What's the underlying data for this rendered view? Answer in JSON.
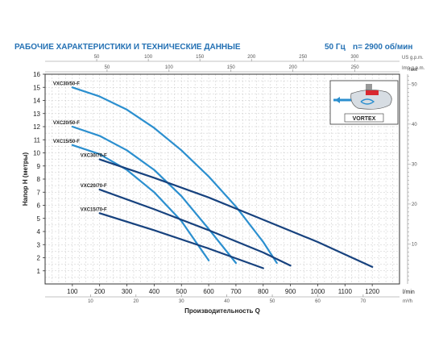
{
  "header": {
    "title": "РАБОЧИЕ ХАРАКТЕРИСТИКИ И ТЕХНИЧЕСКИЕ ДАННЫЕ",
    "frequency": "50 Гц",
    "speed": "n= 2900 об/мин"
  },
  "inset": {
    "label": "VORTEX"
  },
  "colors": {
    "light": "#2b8fcf",
    "dark": "#17427e",
    "grid": "#c9c9c9",
    "axis": "#333333"
  },
  "chart_data": {
    "type": "line",
    "xlabel": "Производительность Q",
    "ylabel": "Напор H (метры)",
    "x_unit": "l/min",
    "xlim": [
      0,
      1300
    ],
    "ylim": [
      0,
      16
    ],
    "xticks": [
      100,
      200,
      300,
      400,
      500,
      600,
      700,
      800,
      900,
      1000,
      1100,
      1200
    ],
    "yticks": [
      1,
      2,
      3,
      4,
      5,
      6,
      7,
      8,
      9,
      10,
      11,
      12,
      13,
      14,
      15,
      16
    ],
    "top_axes": [
      {
        "unit": "US g.p.m.",
        "per_lmin": 0.2642,
        "ticks": [
          50,
          100,
          150,
          200,
          250,
          300
        ]
      },
      {
        "unit": "Imp g.p.m.",
        "per_lmin": 0.22,
        "ticks": [
          50,
          100,
          150,
          200,
          250
        ]
      }
    ],
    "bottom_axis": {
      "unit": "m³/h",
      "per_lmin": 0.06,
      "ticks": [
        10,
        20,
        30,
        40,
        50,
        60,
        70
      ]
    },
    "right_axis": {
      "unit": "feet",
      "per_m": 3.281,
      "ticks": [
        10,
        20,
        30,
        40,
        50
      ]
    },
    "series": [
      {
        "name": "VXC30/50-F",
        "color": "light",
        "x": [
          100,
          200,
          300,
          400,
          500,
          600,
          700,
          800,
          850
        ],
        "y": [
          15,
          14.3,
          13.3,
          11.9,
          10.2,
          8.2,
          5.9,
          3.2,
          1.6
        ]
      },
      {
        "name": "VXC20/50-F",
        "color": "light",
        "x": [
          100,
          200,
          300,
          400,
          500,
          600,
          700
        ],
        "y": [
          12,
          11.3,
          10.2,
          8.7,
          6.7,
          4.2,
          1.6
        ]
      },
      {
        "name": "VXC15/50-F",
        "color": "light",
        "x": [
          100,
          200,
          300,
          400,
          500,
          600
        ],
        "y": [
          10.6,
          9.9,
          8.7,
          7,
          4.8,
          1.8
        ]
      },
      {
        "name": "VXC30/70-F",
        "color": "dark",
        "x": [
          200,
          400,
          600,
          800,
          1000,
          1200
        ],
        "y": [
          9.5,
          8.1,
          6.6,
          4.9,
          3.2,
          1.3
        ]
      },
      {
        "name": "VXC20/70-F",
        "color": "dark",
        "x": [
          200,
          400,
          600,
          800,
          900
        ],
        "y": [
          7.2,
          5.7,
          4.1,
          2.4,
          1.4
        ]
      },
      {
        "name": "VXC15/70-F",
        "color": "dark",
        "x": [
          200,
          400,
          600,
          800
        ],
        "y": [
          5.4,
          4.1,
          2.7,
          1.2
        ]
      }
    ]
  }
}
